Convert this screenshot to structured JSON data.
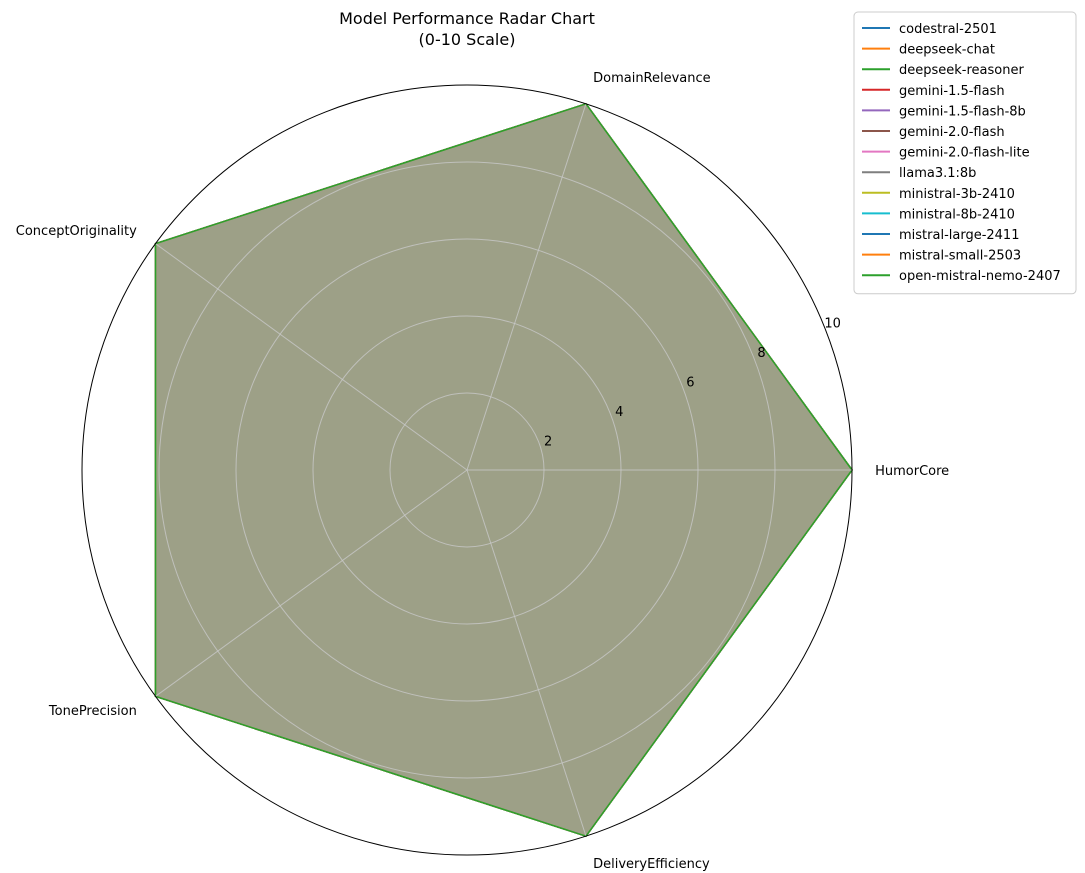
{
  "chart_data": {
    "type": "radar",
    "title": "Model Performance Radar Chart",
    "subtitle": "(0-10 Scale)",
    "axes": [
      "HumorCore",
      "DomainRelevance",
      "ConceptOriginality",
      "TonePrecision",
      "DeliveryEfficiency"
    ],
    "rlim": [
      0,
      10
    ],
    "rticks": [
      2,
      4,
      6,
      8,
      10
    ],
    "rtick_labels": [
      "2",
      "4",
      "6",
      "8",
      "10"
    ],
    "grid": true,
    "legend_position": "top-right",
    "fill_color": "#9da087",
    "series": [
      {
        "name": "codestral-2501",
        "color": "#1f77b4",
        "values": [
          10,
          10,
          10,
          10,
          10
        ]
      },
      {
        "name": "deepseek-chat",
        "color": "#ff7f0e",
        "values": [
          10,
          10,
          10,
          10,
          10
        ]
      },
      {
        "name": "deepseek-reasoner",
        "color": "#2ca02c",
        "values": [
          10,
          10,
          10,
          10,
          10
        ]
      },
      {
        "name": "gemini-1.5-flash",
        "color": "#d62728",
        "values": [
          10,
          10,
          10,
          10,
          10
        ]
      },
      {
        "name": "gemini-1.5-flash-8b",
        "color": "#9467bd",
        "values": [
          10,
          10,
          10,
          10,
          10
        ]
      },
      {
        "name": "gemini-2.0-flash",
        "color": "#8c564b",
        "values": [
          10,
          10,
          10,
          10,
          10
        ]
      },
      {
        "name": "gemini-2.0-flash-lite",
        "color": "#e377c2",
        "values": [
          10,
          10,
          10,
          10,
          10
        ]
      },
      {
        "name": "llama3.1:8b",
        "color": "#7f7f7f",
        "values": [
          10,
          10,
          10,
          10,
          10
        ]
      },
      {
        "name": "ministral-3b-2410",
        "color": "#bcbd22",
        "values": [
          10,
          10,
          10,
          10,
          10
        ]
      },
      {
        "name": "ministral-8b-2410",
        "color": "#17becf",
        "values": [
          10,
          10,
          10,
          10,
          10
        ]
      },
      {
        "name": "mistral-large-2411",
        "color": "#1f77b4",
        "values": [
          10,
          10,
          10,
          10,
          10
        ]
      },
      {
        "name": "mistral-small-2503",
        "color": "#ff7f0e",
        "values": [
          10,
          10,
          10,
          10,
          10
        ]
      },
      {
        "name": "open-mistral-nemo-2407",
        "color": "#2ca02c",
        "values": [
          10,
          10,
          10,
          10,
          10
        ]
      }
    ]
  }
}
